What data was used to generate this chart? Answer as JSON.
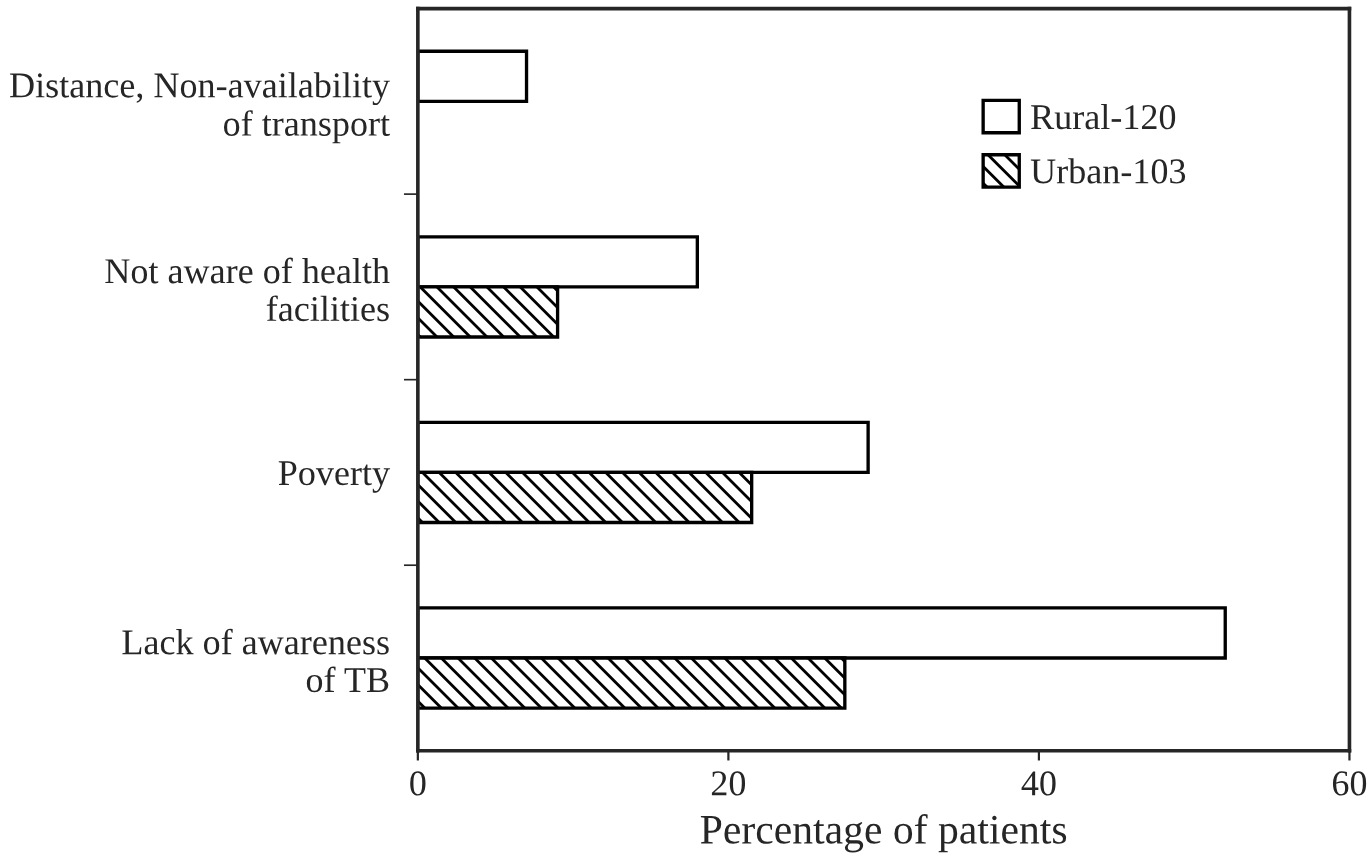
{
  "chart_data": {
    "type": "bar",
    "orientation": "horizontal",
    "xlabel": "Percentage of patients",
    "categories": [
      "Distance, Non-availability\nof transport",
      "Not aware of health\nfacilities",
      "Poverty",
      "Lack of awareness\nof TB"
    ],
    "series": [
      {
        "name": "Rural-120",
        "color": "#ffffff",
        "values": [
          7,
          18,
          29,
          52
        ]
      },
      {
        "name": "Urban-103",
        "color": "#000000",
        "values": [
          null,
          9,
          21.5,
          27.5
        ]
      }
    ],
    "xlim": [
      0,
      60
    ],
    "xticks": [
      0,
      20,
      40,
      60
    ],
    "grid": false,
    "legend": "top right"
  }
}
